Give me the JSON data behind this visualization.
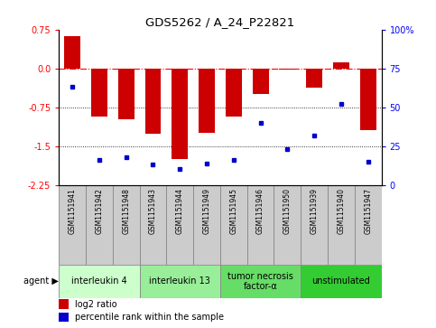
{
  "title": "GDS5262 / A_24_P22821",
  "samples": [
    "GSM1151941",
    "GSM1151942",
    "GSM1151948",
    "GSM1151943",
    "GSM1151944",
    "GSM1151949",
    "GSM1151945",
    "GSM1151946",
    "GSM1151950",
    "GSM1151939",
    "GSM1151940",
    "GSM1151947"
  ],
  "log2_ratio": [
    0.62,
    -0.93,
    -0.98,
    -1.27,
    -1.75,
    -1.25,
    -0.93,
    -0.5,
    -0.03,
    -0.38,
    0.12,
    -1.2
  ],
  "percentile": [
    63,
    16,
    18,
    13,
    10,
    14,
    16,
    40,
    23,
    32,
    52,
    15
  ],
  "ylim": [
    -2.25,
    0.75
  ],
  "yticks_left": [
    0.75,
    0.0,
    -0.75,
    -1.5,
    -2.25
  ],
  "yticks_right_labels": [
    "100%",
    "75",
    "50",
    "25",
    "0"
  ],
  "hlines": [
    0.0,
    -0.75,
    -1.5
  ],
  "hline_styles": [
    "dashdot",
    "dotted",
    "dotted"
  ],
  "bar_color": "#cc0000",
  "dot_color": "#0000cc",
  "agent_groups": [
    {
      "label": "interleukin 4",
      "start": 0,
      "end": 3,
      "color": "#ccffcc"
    },
    {
      "label": "interleukin 13",
      "start": 3,
      "end": 6,
      "color": "#99ee99"
    },
    {
      "label": "tumor necrosis\nfactor-α",
      "start": 6,
      "end": 9,
      "color": "#66dd66"
    },
    {
      "label": "unstimulated",
      "start": 9,
      "end": 12,
      "color": "#33cc33"
    }
  ],
  "bar_width": 0.6,
  "sample_box_color": "#cccccc",
  "agent_label": "agent ▶"
}
